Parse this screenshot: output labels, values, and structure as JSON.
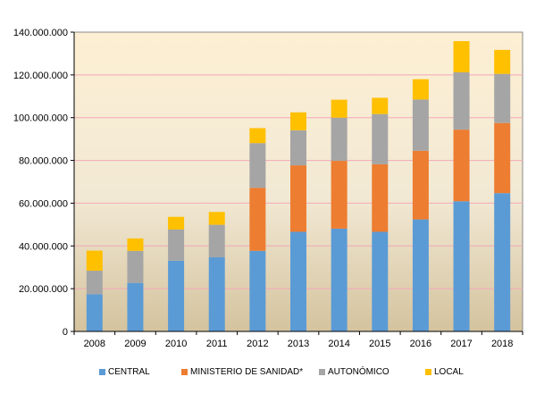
{
  "chart_data": {
    "type": "bar",
    "stacked": true,
    "categories": [
      "2008",
      "2009",
      "2010",
      "2011",
      "2012",
      "2013",
      "2014",
      "2015",
      "2016",
      "2017",
      "2018"
    ],
    "series": [
      {
        "name": "CENTRAL",
        "color": "#5b9bd5",
        "values": [
          17400000,
          22700000,
          33100000,
          34700000,
          37700000,
          46600000,
          48100000,
          46600000,
          52400000,
          60900000,
          64700000
        ]
      },
      {
        "name": "MINISTERIO DE SANIDAD*",
        "color": "#ed7d31",
        "values": [
          0,
          0,
          0,
          0,
          29500000,
          31100000,
          31700000,
          31600000,
          32100000,
          33500000,
          32800000
        ]
      },
      {
        "name": "AUTONÓMICO",
        "color": "#a5a5a5",
        "values": [
          11000000,
          15000000,
          14600000,
          15200000,
          20900000,
          16400000,
          20200000,
          23500000,
          24000000,
          26800000,
          23000000
        ]
      },
      {
        "name": "LOCAL",
        "color": "#ffc000",
        "values": [
          9400000,
          5800000,
          5900000,
          6000000,
          7000000,
          8400000,
          8400000,
          7600000,
          9500000,
          14600000,
          11200000
        ]
      }
    ],
    "ylim": [
      0,
      140000000
    ],
    "yticks": [
      "0",
      "20.000.000",
      "40.000.000",
      "60.000.000",
      "80.000.000",
      "100.000.000",
      "120.000.000",
      "140.000.000"
    ],
    "grid": true,
    "grid_color": "#f4a7b9",
    "legend_position": "bottom"
  }
}
